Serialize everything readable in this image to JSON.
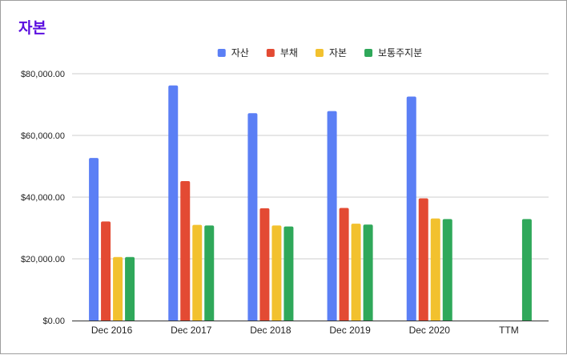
{
  "chart_data": {
    "type": "bar",
    "title": "자본",
    "title_color": "#5b0fe0",
    "categories": [
      "Dec 2016",
      "Dec 2017",
      "Dec 2018",
      "Dec 2019",
      "Dec 2020",
      "TTM"
    ],
    "series": [
      {
        "name": "자산",
        "color": "#5b7ff5",
        "values": [
          52700,
          76200,
          67200,
          67900,
          72600,
          null
        ]
      },
      {
        "name": "부채",
        "color": "#e34a33",
        "values": [
          32100,
          45200,
          36400,
          36500,
          39600,
          null
        ]
      },
      {
        "name": "자본",
        "color": "#f2c12e",
        "values": [
          20600,
          31000,
          30800,
          31400,
          33100,
          null
        ]
      },
      {
        "name": "보통주지분",
        "color": "#2fa85a",
        "values": [
          20600,
          30800,
          30500,
          31100,
          32900,
          32900
        ]
      }
    ],
    "y_ticks": [
      "$0.00",
      "$20,000.00",
      "$40,000.00",
      "$60,000.00",
      "$80,000.00"
    ],
    "ylim": [
      0,
      80000
    ],
    "grid": true,
    "legend_position": "top-center",
    "xlabel": "",
    "ylabel": ""
  }
}
